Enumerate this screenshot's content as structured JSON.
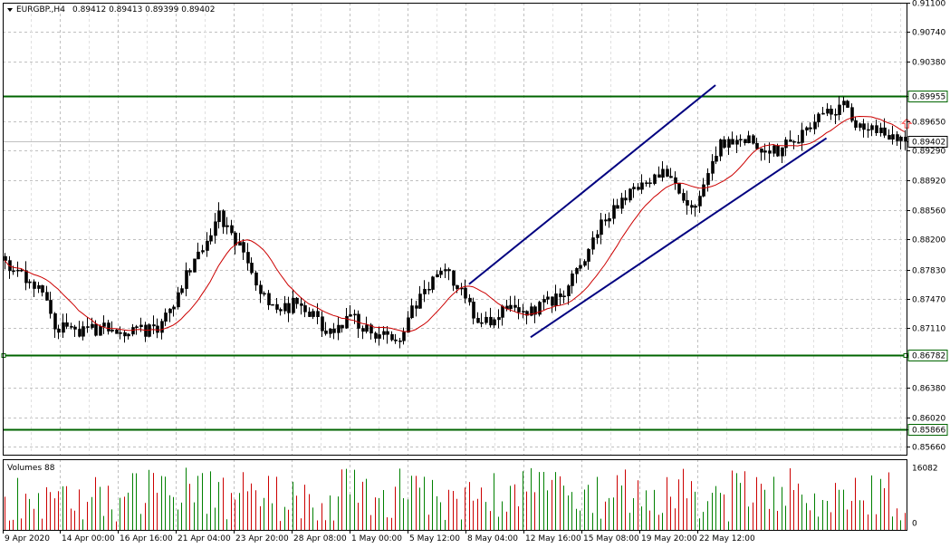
{
  "header": {
    "symbol": "EURGBP.,H4",
    "ohlc": "0.89412 0.89413 0.89399 0.89402"
  },
  "volume_label": "Volumes 88",
  "colors": {
    "grid": "#c0c0c0",
    "level_line": "#006400",
    "channel_line": "#000080",
    "ma_line": "#cc0000",
    "candle": "#000000",
    "bid_line": "#c0c0c0",
    "vol_up": "#008000",
    "vol_down": "#cc0000",
    "arrow": "#ff4040"
  },
  "chart_data": [
    {
      "type": "candlestick",
      "title": "",
      "ylim": [
        0.8556,
        0.911
      ],
      "y_ticks": [
        "0.91100",
        "0.90740",
        "0.90380",
        "0.89955",
        "0.89650",
        "0.89402",
        "0.89290",
        "0.88920",
        "0.88560",
        "0.88200",
        "0.87830",
        "0.87470",
        "0.87110",
        "0.86782",
        "0.86380",
        "0.86020",
        "0.85866",
        "0.85660"
      ],
      "x_ticks": [
        "9 Apr 2020",
        "14 Apr 00:00",
        "16 Apr 16:00",
        "21 Apr 04:00",
        "23 Apr 20:00",
        "28 Apr 08:00",
        "1 May 00:00",
        "5 May 12:00",
        "8 May 04:00",
        "12 May 16:00",
        "15 May 08:00",
        "19 May 20:00",
        "22 May 12:00"
      ],
      "current_price": 0.89402,
      "levels": [
        0.89955,
        0.86782,
        0.85866
      ],
      "price_path": [
        [
          0,
          0.8792
        ],
        [
          8,
          0.876
        ],
        [
          12,
          0.8715
        ],
        [
          18,
          0.8705
        ],
        [
          24,
          0.8712
        ],
        [
          30,
          0.8705
        ],
        [
          38,
          0.8712
        ],
        [
          46,
          0.8795
        ],
        [
          52,
          0.8848
        ],
        [
          56,
          0.882
        ],
        [
          60,
          0.8775
        ],
        [
          66,
          0.873
        ],
        [
          72,
          0.8745
        ],
        [
          78,
          0.8705
        ],
        [
          84,
          0.8725
        ],
        [
          90,
          0.8705
        ],
        [
          96,
          0.87
        ],
        [
          100,
          0.8742
        ],
        [
          106,
          0.8788
        ],
        [
          110,
          0.876
        ],
        [
          116,
          0.8715
        ],
        [
          122,
          0.8735
        ],
        [
          128,
          0.8732
        ],
        [
          136,
          0.8752
        ],
        [
          144,
          0.883
        ],
        [
          152,
          0.888
        ],
        [
          160,
          0.89
        ],
        [
          168,
          0.8855
        ],
        [
          174,
          0.8938
        ],
        [
          180,
          0.8945
        ],
        [
          186,
          0.8925
        ],
        [
          192,
          0.894
        ],
        [
          198,
          0.897
        ],
        [
          204,
          0.8985
        ],
        [
          208,
          0.8955
        ],
        [
          214,
          0.8948
        ],
        [
          220,
          0.894
        ]
      ],
      "channel": {
        "upper": [
          [
            113,
            0.8765
          ],
          [
            173,
            0.9009
          ]
        ],
        "lower": [
          [
            128,
            0.87
          ],
          [
            200,
            0.8944
          ]
        ]
      },
      "arrow_price": 0.8962
    },
    {
      "type": "bar",
      "title": "",
      "name": "Volumes 88",
      "ylim": [
        0,
        16082
      ],
      "y_ticks": [
        "16082",
        "0"
      ]
    }
  ]
}
